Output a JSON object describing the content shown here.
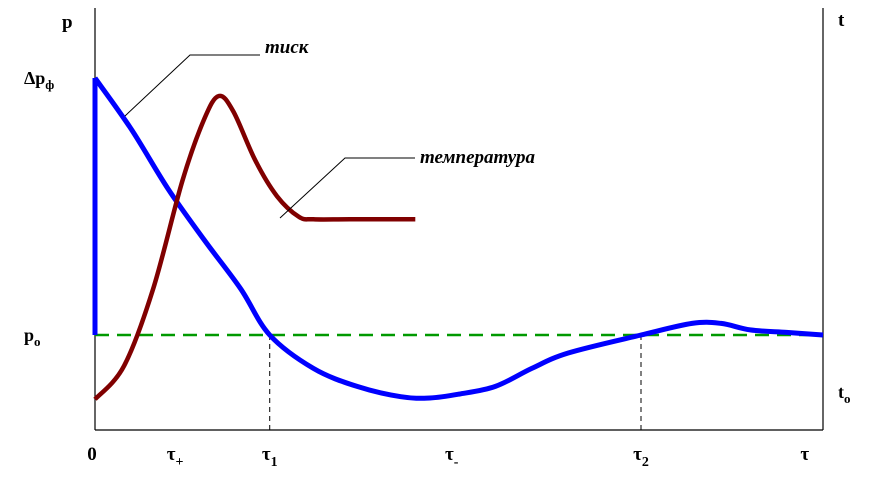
{
  "chart_data": {
    "type": "line",
    "title": "",
    "left_axis_label": "p",
    "right_axis_label": "t",
    "x_axis_label": "τ",
    "left_ticks": [
      {
        "base": "Δp",
        "sub": "ф",
        "value": 1.0
      },
      {
        "base": "p",
        "sub": "o",
        "value": 0.0
      }
    ],
    "right_ticks": [
      {
        "base": "t",
        "sub": "o",
        "value": 0.0
      }
    ],
    "x_ticks": [
      {
        "base": "0",
        "sub": "",
        "value": 0.0
      },
      {
        "base": "τ",
        "sub": "+",
        "value": 0.11
      },
      {
        "base": "τ",
        "sub": "1",
        "value": 0.24
      },
      {
        "base": "τ",
        "sub": "-",
        "value": 0.49
      },
      {
        "base": "τ",
        "sub": "2",
        "value": 0.75
      }
    ],
    "xlim": [
      0,
      1
    ],
    "ylim": [
      -0.4,
      1.1
    ],
    "series": [
      {
        "name": "тиск",
        "color": "#0000FF",
        "initial_jump": [
          0.0,
          1.0
        ],
        "points": [
          [
            0.0,
            1.0
          ],
          [
            0.05,
            0.8
          ],
          [
            0.1,
            0.57
          ],
          [
            0.15,
            0.37
          ],
          [
            0.2,
            0.18
          ],
          [
            0.24,
            0.0
          ],
          [
            0.3,
            -0.13
          ],
          [
            0.36,
            -0.2
          ],
          [
            0.42,
            -0.24
          ],
          [
            0.46,
            -0.245
          ],
          [
            0.5,
            -0.23
          ],
          [
            0.55,
            -0.2
          ],
          [
            0.6,
            -0.13
          ],
          [
            0.65,
            -0.07
          ],
          [
            0.75,
            0.0
          ],
          [
            0.82,
            0.045
          ],
          [
            0.86,
            0.045
          ],
          [
            0.9,
            0.02
          ],
          [
            0.95,
            0.01
          ],
          [
            1.0,
            0.0
          ]
        ]
      },
      {
        "name": "температура",
        "color": "#800000",
        "points": [
          [
            0.0,
            -0.25
          ],
          [
            0.04,
            -0.12
          ],
          [
            0.08,
            0.18
          ],
          [
            0.12,
            0.6
          ],
          [
            0.15,
            0.84
          ],
          [
            0.17,
            0.93
          ],
          [
            0.19,
            0.87
          ],
          [
            0.22,
            0.68
          ],
          [
            0.25,
            0.54
          ],
          [
            0.28,
            0.46
          ],
          [
            0.3,
            0.45
          ],
          [
            0.35,
            0.45
          ],
          [
            0.44,
            0.45
          ]
        ]
      }
    ],
    "reference_line": {
      "name": "p_o",
      "value": 0.0,
      "color": "#009900",
      "style": "dashed"
    },
    "crossing_markers": [
      0.24,
      0.75
    ],
    "annotations": [
      {
        "text": "тиск",
        "series": "тиск"
      },
      {
        "text": "температура",
        "series": "температура"
      }
    ],
    "grid": false,
    "legend": "none"
  }
}
